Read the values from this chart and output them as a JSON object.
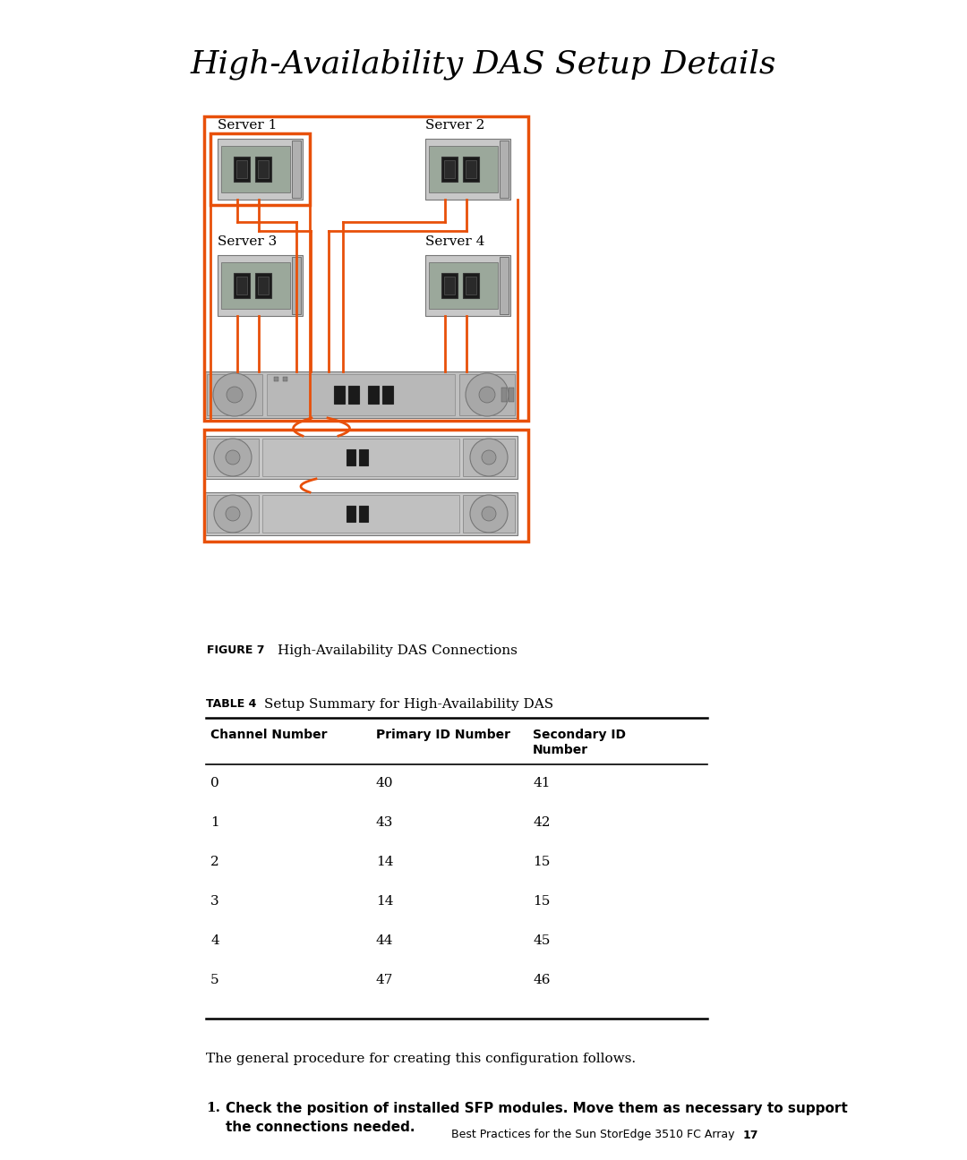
{
  "title": "High-Availability DAS Setup Details",
  "figure_label": "FIGURE 7",
  "figure_caption": "High-Availability DAS Connections",
  "table_label": "TABLE 4",
  "table_caption": "Setup Summary for High-Availability DAS",
  "table_headers": [
    "Channel Number",
    "Primary ID Number",
    "Secondary ID\nNumber"
  ],
  "table_data": [
    [
      "0",
      "40",
      "41"
    ],
    [
      "1",
      "43",
      "42"
    ],
    [
      "2",
      "14",
      "15"
    ],
    [
      "3",
      "14",
      "15"
    ],
    [
      "4",
      "44",
      "45"
    ],
    [
      "5",
      "47",
      "46"
    ]
  ],
  "paragraph_text": "The general procedure for creating this configuration follows.",
  "step1_text": "Check the position of installed SFP modules. Move them as necessary to support\nthe connections needed.",
  "footer_text": "Best Practices for the Sun StorEdge 3510 FC Array",
  "footer_page": "17",
  "orange_color": "#E8500A",
  "bg_color": "#FFFFFF"
}
